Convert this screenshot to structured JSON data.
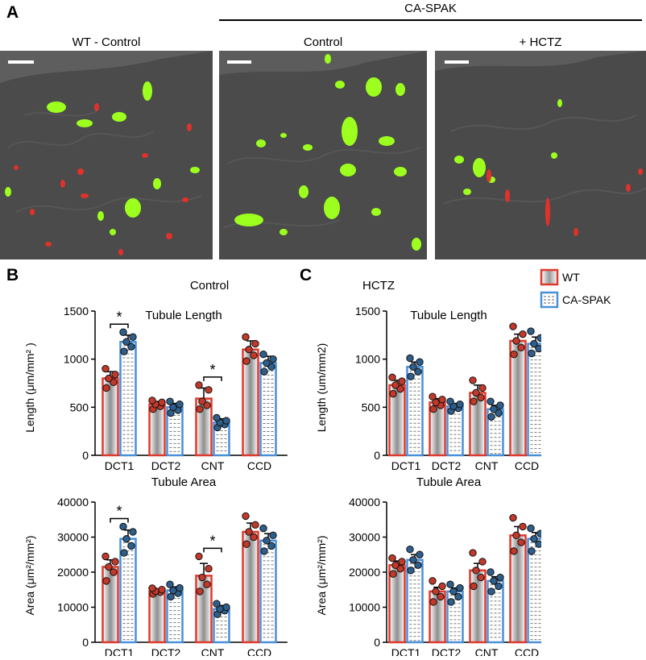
{
  "panels": {
    "a": {
      "label": "A",
      "group_title": "CA-SPAK",
      "image_titles": [
        "WT - Control",
        "Control",
        "+ HCTZ"
      ]
    },
    "b": {
      "label": "B",
      "title": "Control"
    },
    "c": {
      "label": "C",
      "title": "HCTZ"
    }
  },
  "legend": {
    "items": [
      {
        "name": "WT",
        "color": "#e03a2e",
        "pattern": "gradient"
      },
      {
        "name": "CA-SPAK",
        "color": "#4a90d9",
        "pattern": "dashed"
      }
    ]
  },
  "colors": {
    "wt_edge": "#e03a2e",
    "spak_edge": "#4a90d9",
    "wt_dot": "#c0392b",
    "spak_dot": "#2e5f8a",
    "green_label": "#9cff1e",
    "red_label": "#e0322b"
  },
  "chart_data": [
    {
      "id": "b-length",
      "type": "bar",
      "title": "Tubule Length",
      "ylabel": "Length (μm/mm² )",
      "categories": [
        "DCT1",
        "DCT2",
        "CNT",
        "CCD"
      ],
      "ylim": [
        0,
        1500
      ],
      "yticks": [
        0,
        500,
        1000,
        1500
      ],
      "series": [
        {
          "name": "WT",
          "values": [
            800,
            530,
            590,
            1100
          ],
          "errors": [
            70,
            30,
            110,
            90
          ],
          "points": [
            [
              700,
              760,
              800,
              840,
              900
            ],
            [
              480,
              510,
              530,
              550,
              570
            ],
            [
              480,
              520,
              560,
              680,
              730
            ],
            [
              980,
              1040,
              1100,
              1160,
              1230
            ]
          ]
        },
        {
          "name": "CA-SPAK",
          "values": [
            1180,
            500,
            340,
            960
          ],
          "errors": [
            70,
            40,
            40,
            70
          ],
          "points": [
            [
              1080,
              1130,
              1180,
              1230,
              1280
            ],
            [
              440,
              470,
              500,
              530,
              560
            ],
            [
              290,
              320,
              340,
              360,
              390
            ],
            [
              870,
              920,
              960,
              1000,
              1050
            ]
          ]
        }
      ],
      "significance": [
        {
          "category": "DCT1",
          "label": "*"
        },
        {
          "category": "CNT",
          "label": "*"
        }
      ]
    },
    {
      "id": "b-area",
      "type": "bar",
      "title": "Tubule Area",
      "ylabel": "Area (μm²/mm²)",
      "categories": [
        "DCT1",
        "DCT2",
        "CNT",
        "CCD"
      ],
      "ylim": [
        0,
        40000
      ],
      "yticks": [
        0,
        10000,
        20000,
        30000,
        40000
      ],
      "series": [
        {
          "name": "WT",
          "values": [
            21500,
            14500,
            19000,
            31500
          ],
          "errors": [
            2000,
            700,
            3500,
            2500
          ],
          "points": [
            [
              17500,
              20000,
              21500,
              23000,
              24500
            ],
            [
              13800,
              14300,
              14600,
              15000,
              15400
            ],
            [
              14500,
              16500,
              18500,
              21000,
              24500
            ],
            [
              28000,
              30000,
              31500,
              33500,
              36000
            ]
          ]
        },
        {
          "name": "CA-SPAK",
          "values": [
            29500,
            14800,
            9500,
            29000
          ],
          "errors": [
            2500,
            1000,
            1000,
            2000
          ],
          "points": [
            [
              25500,
              27500,
              29500,
              31500,
              33000
            ],
            [
              13000,
              14000,
              14800,
              15500,
              16500
            ],
            [
              8000,
              9000,
              9500,
              10000,
              11000
            ],
            [
              26000,
              27500,
              29000,
              30500,
              32500
            ]
          ]
        }
      ],
      "significance": [
        {
          "category": "DCT1",
          "label": "*"
        },
        {
          "category": "CNT",
          "label": "*"
        }
      ]
    },
    {
      "id": "c-length",
      "type": "bar",
      "title": "Tubule Length",
      "ylabel": "Length (um/mm2)",
      "categories": [
        "DCT1",
        "DCT2",
        "CNT",
        "CCD"
      ],
      "ylim": [
        0,
        1500
      ],
      "yticks": [
        0,
        500,
        1000,
        1500
      ],
      "series": [
        {
          "name": "WT",
          "values": [
            730,
            550,
            650,
            1190
          ],
          "errors": [
            50,
            40,
            80,
            70
          ],
          "points": [
            [
              640,
              690,
              730,
              770,
              810
            ],
            [
              480,
              520,
              550,
              580,
              610
            ],
            [
              560,
              600,
              650,
              700,
              780
            ],
            [
              1050,
              1120,
              1190,
              1260,
              1340
            ]
          ]
        },
        {
          "name": "CA-SPAK",
          "values": [
            920,
            510,
            480,
            1160
          ],
          "errors": [
            50,
            30,
            40,
            70
          ],
          "points": [
            [
              820,
              870,
              920,
              970,
              1010
            ],
            [
              460,
              490,
              510,
              530,
              560
            ],
            [
              400,
              440,
              480,
              520,
              560
            ],
            [
              1060,
              1110,
              1160,
              1220,
              1290
            ]
          ]
        }
      ],
      "significance": []
    },
    {
      "id": "c-area",
      "type": "bar",
      "title": "Tubule Area",
      "ylabel": "Area (μm²/mm²)",
      "categories": [
        "DCT1",
        "DCT2",
        "CNT",
        "CCD"
      ],
      "ylim": [
        0,
        40000
      ],
      "yticks": [
        0,
        10000,
        20000,
        30000,
        40000
      ],
      "series": [
        {
          "name": "WT",
          "values": [
            22000,
            14500,
            20500,
            30500
          ],
          "errors": [
            1200,
            1200,
            2000,
            2500
          ],
          "points": [
            [
              19500,
              21000,
              22000,
              23000,
              24000
            ],
            [
              11500,
              13000,
              14500,
              16000,
              17500
            ],
            [
              16000,
              18500,
              20500,
              23000,
              25500
            ],
            [
              26000,
              28500,
              30500,
              33000,
              35500
            ]
          ]
        },
        {
          "name": "CA-SPAK",
          "values": [
            23500,
            14500,
            17500,
            29500
          ],
          "errors": [
            1500,
            1000,
            1200,
            1800
          ],
          "points": [
            [
              20500,
              22000,
              23500,
              25000,
              26500
            ],
            [
              11500,
              13000,
              14500,
              15500,
              16500
            ],
            [
              14500,
              16000,
              17500,
              18500,
              20000
            ],
            [
              26000,
              28000,
              29500,
              31000,
              32500
            ]
          ]
        }
      ],
      "significance": []
    }
  ]
}
